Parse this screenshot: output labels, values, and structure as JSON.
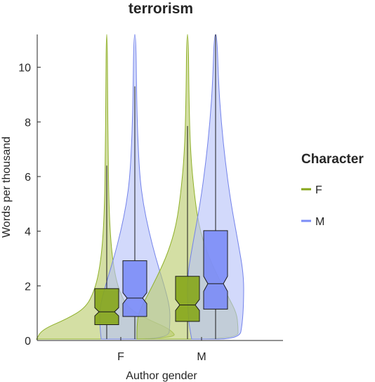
{
  "chart_data": {
    "type": "violin",
    "title": "terrorism",
    "xlabel": "Author gender",
    "ylabel": "Words per thousand",
    "ylim": [
      0,
      11.2
    ],
    "yticks": [
      0,
      2,
      4,
      6,
      8,
      10
    ],
    "categories": [
      "F",
      "M"
    ],
    "legend": {
      "title": "Character",
      "position": "right",
      "entries": [
        "F",
        "M"
      ]
    },
    "colors": {
      "F": "#86a61a",
      "M": "#7b8cf7",
      "F_fill": "#b9cc6c",
      "M_fill": "#b7c1f8",
      "F_edge": "#8fb02a",
      "M_edge": "#7382ea"
    },
    "series": [
      {
        "name": "F",
        "boxes": [
          {
            "category": "F",
            "q1": 0.58,
            "median": 1.05,
            "q3": 1.9,
            "notch": [
              0.9,
              1.2
            ],
            "whisker_low": 0.05,
            "whisker_high": 6.4
          },
          {
            "category": "M",
            "q1": 0.7,
            "median": 1.3,
            "q3": 2.35,
            "notch": [
              1.1,
              1.5
            ],
            "whisker_low": 0.05,
            "whisker_high": 7.85
          }
        ]
      },
      {
        "name": "M",
        "boxes": [
          {
            "category": "F",
            "q1": 0.88,
            "median": 1.55,
            "q3": 2.92,
            "notch": [
              1.35,
              1.75
            ],
            "whisker_low": 0.05,
            "whisker_high": 9.3
          },
          {
            "category": "M",
            "q1": 1.15,
            "median": 2.08,
            "q3": 4.02,
            "notch": [
              1.8,
              2.35
            ],
            "whisker_low": 0.05,
            "whisker_high": 11.2
          }
        ]
      }
    ]
  }
}
